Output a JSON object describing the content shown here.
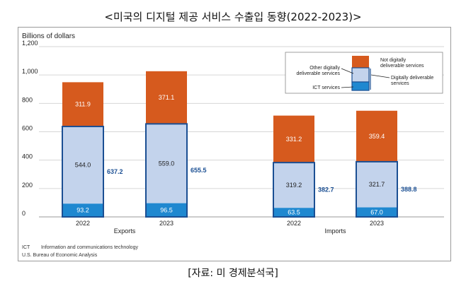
{
  "page_title": "<미국의 디지털 제공 서비스 수출입 동향(2022-2023)>",
  "source_caption": "[자료: 미 경제분석국]",
  "chart_data": {
    "type": "bar",
    "stacked": true,
    "ylabel": "Billions of dollars",
    "ylim": [
      0,
      1200
    ],
    "yticks": [
      0,
      200,
      400,
      600,
      800,
      "1,000",
      "1,200"
    ],
    "grid": true,
    "groups": [
      {
        "label": "Exports",
        "bars": [
          {
            "year": "2022",
            "ict": 93.2,
            "other": 544.0,
            "not_digital": 311.9,
            "digital_total": 637.2
          },
          {
            "year": "2023",
            "ict": 96.5,
            "other": 559.0,
            "not_digital": 371.1,
            "digital_total": 655.5
          }
        ]
      },
      {
        "label": "Imports",
        "bars": [
          {
            "year": "2022",
            "ict": 63.5,
            "other": 319.2,
            "not_digital": 331.2,
            "digital_total": 382.7
          },
          {
            "year": "2023",
            "ict": 67.0,
            "other": 321.7,
            "not_digital": 359.4,
            "digital_total": 388.8
          }
        ]
      }
    ],
    "legend": {
      "position": "top-right",
      "not_digital": "Not digitally deliverable services",
      "other": "Other digitally deliverable services",
      "digital_total": "Digitally deliverable services",
      "ict": "ICT services"
    },
    "colors": {
      "not_digital": "#d65a1e",
      "other": "#c3d3ec",
      "ict": "#1f88d0",
      "outline": "#1b4f93",
      "total_label": "#1b4f93"
    },
    "footnote": {
      "abbr": "ICT",
      "text": "Information and communications technology"
    },
    "source": "U.S. Bureau of Economic Analysis"
  }
}
